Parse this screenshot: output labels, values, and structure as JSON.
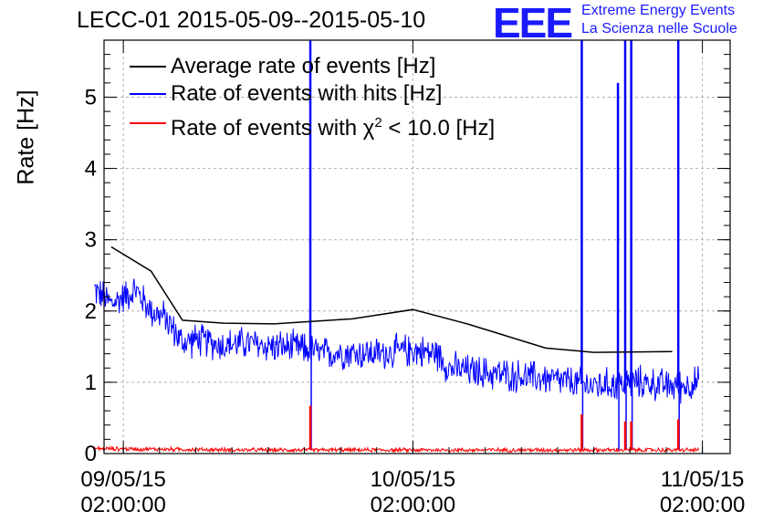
{
  "chart_data": {
    "type": "line",
    "title": "LECC-01 2015-05-09--2015-05-10",
    "ylabel": "Rate [Hz]",
    "xlabel": "",
    "x_unit": "hours since 09/05/15 02:00:00",
    "xlim": [
      -1.6,
      50.3
    ],
    "ylim": [
      0,
      5.8
    ],
    "grid": true,
    "legend_position": "top-left",
    "x_ticks": [
      {
        "value": 0,
        "label_date": "09/05/15",
        "label_time": "02:00:00"
      },
      {
        "value": 24,
        "label_date": "10/05/15",
        "label_time": "02:00:00"
      },
      {
        "value": 48,
        "label_date": "11/05/15",
        "label_time": "02:00:00"
      }
    ],
    "y_ticks": [
      {
        "value": 0,
        "label": "0"
      },
      {
        "value": 1,
        "label": "1"
      },
      {
        "value": 2,
        "label": "2"
      },
      {
        "value": 3,
        "label": "3"
      },
      {
        "value": 4,
        "label": "4"
      },
      {
        "value": 5,
        "label": "5"
      }
    ],
    "series": [
      {
        "name": "Average rate of events [Hz]",
        "color": "#000000",
        "x": [
          -1.0,
          2.3,
          4.9,
          8.3,
          12.5,
          19.0,
          24.0,
          28.5,
          35.0,
          39.0,
          45.5
        ],
        "y": [
          2.9,
          2.56,
          1.87,
          1.83,
          1.82,
          1.89,
          2.02,
          1.82,
          1.48,
          1.42,
          1.43
        ]
      },
      {
        "name": "Rate of events with hits [Hz]",
        "color": "#0000ff",
        "x": [
          -2.4,
          -1.0,
          1.0,
          2.3,
          3.5,
          4.9,
          6.0,
          8.3,
          10.0,
          12.5,
          14.5,
          15.5,
          16.5,
          18.0,
          21.0,
          24.0,
          26.0,
          27.0,
          29.0,
          32.0,
          35.0,
          37.0,
          39.0,
          41.0,
          43.0,
          45.0,
          46.5,
          47.7
        ],
        "y": [
          2.3,
          2.1,
          2.3,
          2.0,
          1.9,
          1.55,
          1.6,
          1.52,
          1.55,
          1.5,
          1.48,
          1.45,
          1.4,
          1.42,
          1.4,
          1.45,
          1.4,
          1.2,
          1.15,
          1.1,
          1.05,
          1.0,
          0.95,
          0.98,
          1.0,
          0.95,
          0.95,
          1.0
        ],
        "spikes": [
          {
            "x": 15.5,
            "y": 5.8
          },
          {
            "x": 38.0,
            "y": 5.8
          },
          {
            "x": 41.0,
            "y": 5.2
          },
          {
            "x": 41.6,
            "y": 5.8
          },
          {
            "x": 42.1,
            "y": 5.8
          },
          {
            "x": 46.0,
            "y": 5.8
          }
        ]
      },
      {
        "name": "Rate of events with χ² < 10.0 [Hz]",
        "name_prefix": "Rate of events with ",
        "name_symbol": "χ",
        "name_superscript": "2",
        "name_suffix": " < 10.0 [Hz]",
        "color": "#ff0000",
        "x": [
          -2.4,
          10.0,
          20.0,
          30.0,
          40.0,
          47.7
        ],
        "y": [
          0.07,
          0.05,
          0.05,
          0.05,
          0.05,
          0.05
        ],
        "spikes": [
          {
            "x": 15.5,
            "y": 0.67
          },
          {
            "x": 38.0,
            "y": 0.55
          },
          {
            "x": 41.6,
            "y": 0.45
          },
          {
            "x": 42.1,
            "y": 0.45
          },
          {
            "x": 46.0,
            "y": 0.48
          }
        ]
      }
    ]
  },
  "logo": {
    "mark": "EEE",
    "line1": "Extreme Energy Events",
    "line2": "La Scienza nelle Scuole",
    "color": "#1a1aff"
  }
}
